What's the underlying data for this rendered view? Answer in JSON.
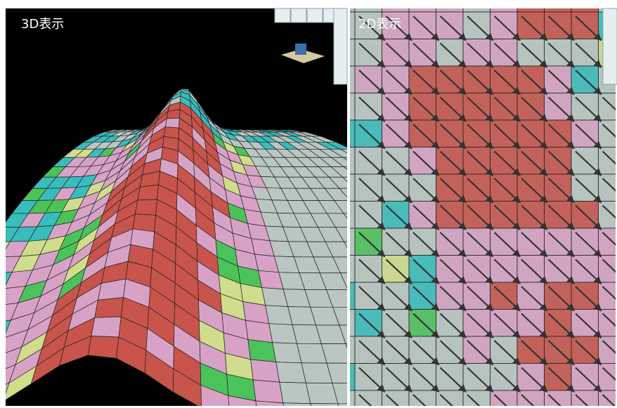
{
  "panels": [
    {
      "label": "3D表示"
    },
    {
      "label": "2D表示"
    }
  ]
}
